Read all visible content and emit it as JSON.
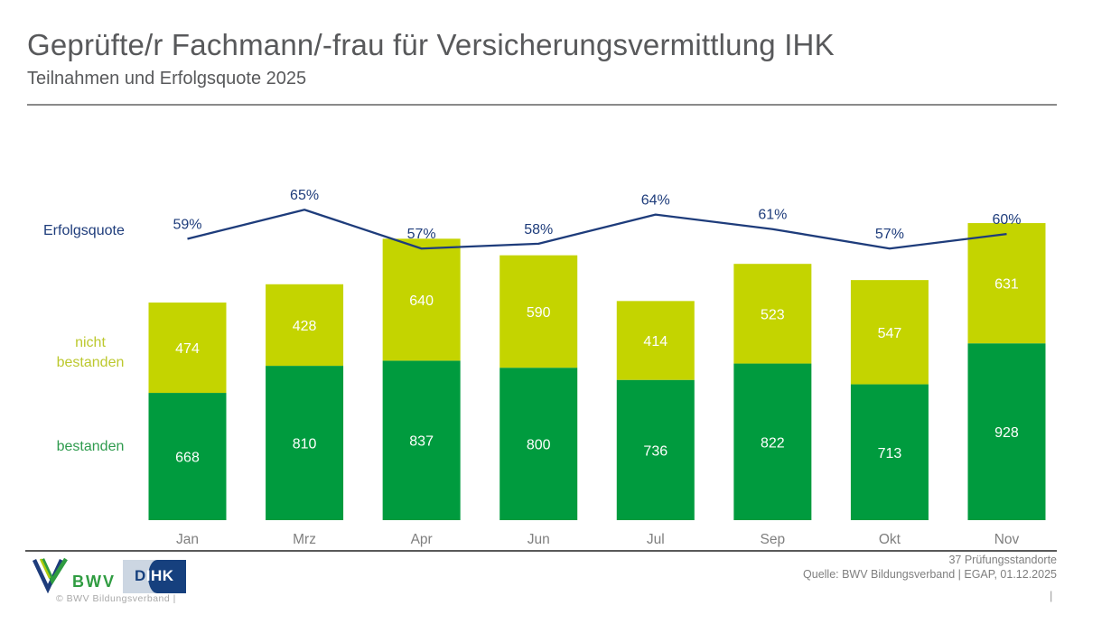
{
  "header": {
    "title": "Geprüfte/r Fachmann/-frau für Versicherungsvermittlung IHK",
    "subtitle": "Teilnahmen und Erfolgsquote 2025"
  },
  "chart_data": {
    "type": "bar",
    "subtype": "stacked-bar-with-line",
    "title": "Teilnahmen und Erfolgsquote 2025",
    "categories": [
      "Jan",
      "Mrz",
      "Apr",
      "Jun",
      "Jul",
      "Sep",
      "Okt",
      "Nov"
    ],
    "series": [
      {
        "name": "bestanden",
        "color": "#009b3e",
        "values": [
          668,
          810,
          837,
          800,
          736,
          822,
          713,
          928
        ]
      },
      {
        "name": "nicht bestanden",
        "color": "#c4d400",
        "values": [
          474,
          428,
          640,
          590,
          414,
          523,
          547,
          631
        ]
      }
    ],
    "line": {
      "name": "Erfolgsquote",
      "color": "#1e3c7b",
      "unit": "%",
      "values": [
        59,
        65,
        57,
        58,
        64,
        61,
        57,
        60
      ]
    },
    "value_label_color": "#ffffff",
    "category_label_color": "#7f7f7f",
    "legend_position": "left",
    "grid": "off"
  },
  "footer": {
    "standorte": "37 Prüfungsstandorte",
    "source": "Quelle: BWV Bildungsverband | EGAP, 01.12.2025",
    "copyright": "©  BWV Bildungsverband  |",
    "page_separator": "|",
    "bwv_logo_text": "BWV",
    "dihk_d": "D",
    "dihk_ihk": "IHK"
  }
}
